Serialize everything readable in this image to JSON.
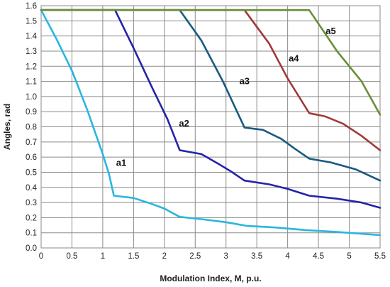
{
  "chart_data": {
    "type": "line",
    "title": "",
    "xlabel": "Modulation Index, M, p.u.",
    "ylabel": "Angles, rad",
    "xlim": [
      0,
      5.5
    ],
    "ylim": [
      0,
      1.6
    ],
    "grid": true,
    "x_ticks": [
      "0",
      "0.5",
      "1",
      "1.5",
      "2",
      "2.5",
      "3",
      "3.5",
      "4",
      "4.5",
      "5",
      "5.5"
    ],
    "y_ticks": [
      "0.0",
      "0.1",
      "0.2",
      "0.3",
      "0.4",
      "0.5",
      "0.6",
      "0.7",
      "0.8",
      "0.9",
      "1.0",
      "1.1",
      "1.2",
      "1.3",
      "1.4",
      "1.5",
      "1.6"
    ],
    "series": [
      {
        "name": "a1",
        "color": "#29b6e0",
        "label_at": [
          1.3,
          0.56
        ],
        "points": [
          [
            0,
            1.571
          ],
          [
            0.25,
            1.38
          ],
          [
            0.5,
            1.17
          ],
          [
            0.75,
            0.91
          ],
          [
            1.0,
            0.62
          ],
          [
            1.1,
            0.49
          ],
          [
            1.18,
            0.345
          ],
          [
            1.5,
            0.33
          ],
          [
            1.8,
            0.29
          ],
          [
            2.0,
            0.26
          ],
          [
            2.25,
            0.205
          ],
          [
            2.6,
            0.19
          ],
          [
            3.0,
            0.17
          ],
          [
            3.35,
            0.145
          ],
          [
            3.8,
            0.135
          ],
          [
            4.3,
            0.118
          ],
          [
            4.8,
            0.105
          ],
          [
            5.5,
            0.085
          ]
        ]
      },
      {
        "name": "a2",
        "color": "#2424a8",
        "label_at": [
          2.32,
          0.82
        ],
        "points": [
          [
            0,
            1.571
          ],
          [
            1.2,
            1.571
          ],
          [
            1.5,
            1.32
          ],
          [
            1.8,
            1.06
          ],
          [
            2.05,
            0.85
          ],
          [
            2.25,
            0.645
          ],
          [
            2.6,
            0.62
          ],
          [
            2.9,
            0.55
          ],
          [
            3.1,
            0.5
          ],
          [
            3.3,
            0.445
          ],
          [
            3.7,
            0.42
          ],
          [
            4.0,
            0.39
          ],
          [
            4.35,
            0.345
          ],
          [
            4.8,
            0.325
          ],
          [
            5.2,
            0.3
          ],
          [
            5.5,
            0.265
          ]
        ]
      },
      {
        "name": "a3",
        "color": "#1a5a80",
        "label_at": [
          3.3,
          1.1
        ],
        "points": [
          [
            0,
            1.571
          ],
          [
            2.25,
            1.571
          ],
          [
            2.6,
            1.37
          ],
          [
            2.95,
            1.1
          ],
          [
            3.3,
            0.795
          ],
          [
            3.6,
            0.78
          ],
          [
            3.9,
            0.72
          ],
          [
            4.1,
            0.66
          ],
          [
            4.35,
            0.59
          ],
          [
            4.7,
            0.565
          ],
          [
            5.1,
            0.52
          ],
          [
            5.5,
            0.445
          ]
        ]
      },
      {
        "name": "a4",
        "color": "#a03a3a",
        "label_at": [
          4.1,
          1.25
        ],
        "points": [
          [
            0,
            1.571
          ],
          [
            3.3,
            1.571
          ],
          [
            3.7,
            1.35
          ],
          [
            4.0,
            1.12
          ],
          [
            4.35,
            0.89
          ],
          [
            4.6,
            0.87
          ],
          [
            4.9,
            0.82
          ],
          [
            5.2,
            0.74
          ],
          [
            5.5,
            0.645
          ]
        ]
      },
      {
        "name": "a5",
        "color": "#6a8e3a",
        "label_at": [
          4.7,
          1.43
        ],
        "points": [
          [
            0,
            1.571
          ],
          [
            4.35,
            1.571
          ],
          [
            4.8,
            1.3
          ],
          [
            5.2,
            1.1
          ],
          [
            5.5,
            0.88
          ]
        ]
      }
    ]
  }
}
